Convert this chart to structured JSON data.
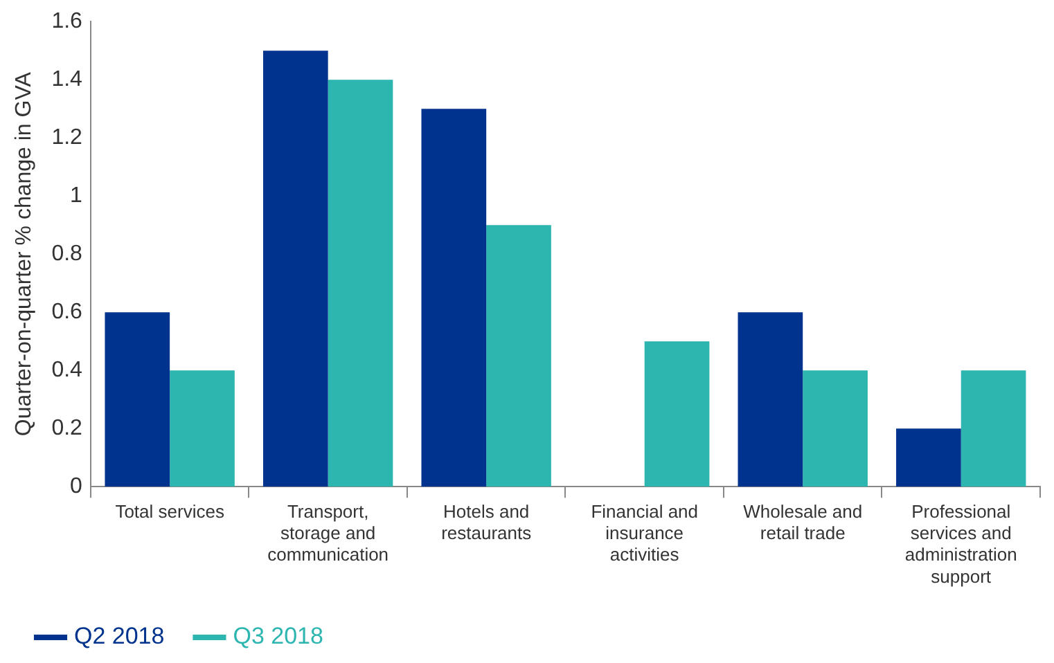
{
  "chart_data": {
    "type": "bar",
    "ylabel": "Quarter-on-quarter % change in GVA",
    "categories": [
      "Total services",
      "Transport, storage and communication",
      "Hotels and restaurants",
      "Financial and insurance activities",
      "Wholesale and retail trade",
      "Professional services and administration support"
    ],
    "series": [
      {
        "name": "Q2 2018",
        "color": "#00338d",
        "values": [
          0.6,
          1.5,
          1.3,
          0,
          0.6,
          0.2
        ]
      },
      {
        "name": "Q3 2018",
        "color": "#2db5b0",
        "values": [
          0.4,
          1.4,
          0.9,
          0.5,
          0.4,
          0.4
        ]
      }
    ],
    "ylim": [
      0,
      1.6
    ],
    "yticks": [
      0,
      0.2,
      0.4,
      0.6,
      0.8,
      1,
      1.2,
      1.4,
      1.6
    ],
    "grid": false,
    "legend": "bottom left"
  }
}
